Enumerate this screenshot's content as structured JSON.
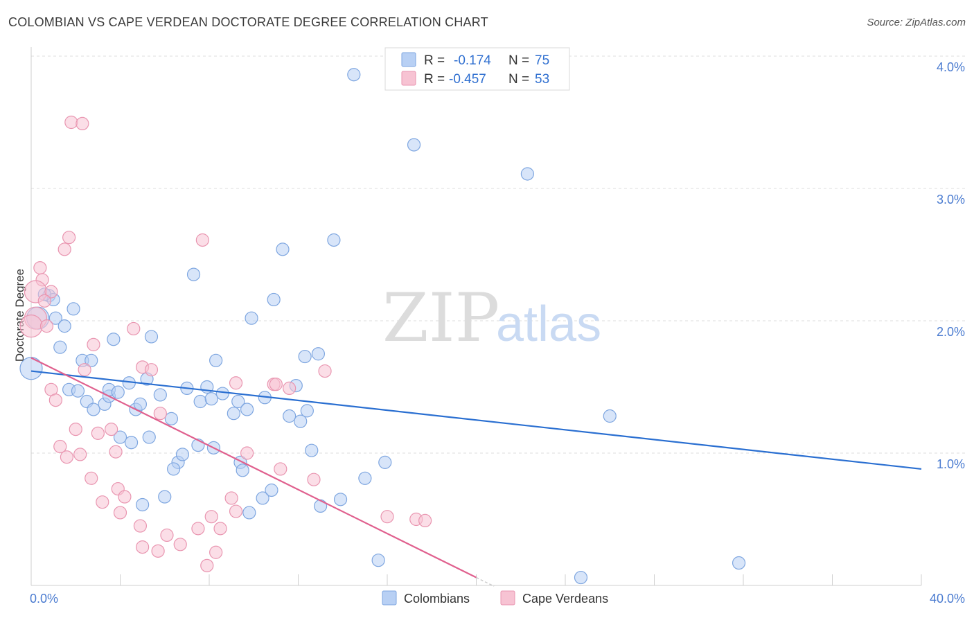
{
  "header": {
    "title": "COLOMBIAN VS CAPE VERDEAN DOCTORATE DEGREE CORRELATION CHART",
    "source": "Source: ZipAtlas.com"
  },
  "colors": {
    "blue_fill": "#b8d0f4",
    "blue_stroke": "#7ea6e0",
    "blue_line": "#2a6fd1",
    "pink_fill": "#f7c3d3",
    "pink_stroke": "#e995b0",
    "pink_line": "#e0608e",
    "grid": "#dddddd",
    "tick_text": "#4a7bd0"
  },
  "watermark": {
    "part1": "ZIP",
    "part2": "atlas"
  },
  "legend": {
    "rows": [
      {
        "r_label": "R =",
        "r_value": "-0.174",
        "n_label": "N =",
        "n_value": "75"
      },
      {
        "r_label": "R =",
        "r_value": "-0.457",
        "n_label": "N =",
        "n_value": "53"
      }
    ]
  },
  "chart_data": {
    "type": "scatter",
    "title": "COLOMBIAN VS CAPE VERDEAN DOCTORATE DEGREE CORRELATION CHART",
    "xlabel": "",
    "ylabel": "Doctorate Degree",
    "xlim": [
      0,
      40
    ],
    "ylim": [
      0,
      4.1
    ],
    "x_tick_labels": [
      {
        "value": 0,
        "label": "0.0%"
      },
      {
        "value": 40,
        "label": "40.0%"
      }
    ],
    "y_tick_labels": [
      {
        "value": 1,
        "label": "1.0%"
      },
      {
        "value": 2,
        "label": "2.0%"
      },
      {
        "value": 3,
        "label": "3.0%"
      },
      {
        "value": 4,
        "label": "4.0%"
      }
    ],
    "grid": true,
    "legend_position": "top-center",
    "series": [
      {
        "name": "Colombians",
        "color": "#b8d0f4",
        "trend": {
          "x": [
            0,
            40
          ],
          "y": [
            1.62,
            0.88
          ]
        },
        "points": [
          {
            "x": 14.5,
            "y": 3.86
          },
          {
            "x": 17.2,
            "y": 3.33
          },
          {
            "x": 22.3,
            "y": 3.11
          },
          {
            "x": 11.3,
            "y": 2.54
          },
          {
            "x": 13.6,
            "y": 2.61
          },
          {
            "x": 7.3,
            "y": 2.35
          },
          {
            "x": 10.9,
            "y": 2.16
          },
          {
            "x": 9.9,
            "y": 2.02
          },
          {
            "x": 0.8,
            "y": 2.19
          },
          {
            "x": 1.0,
            "y": 2.16
          },
          {
            "x": 1.9,
            "y": 2.09
          },
          {
            "x": 1.1,
            "y": 2.02
          },
          {
            "x": 1.5,
            "y": 1.96
          },
          {
            "x": 0.3,
            "y": 2.02
          },
          {
            "x": 1.3,
            "y": 1.8
          },
          {
            "x": 3.7,
            "y": 1.86
          },
          {
            "x": 5.4,
            "y": 1.88
          },
          {
            "x": 0.0,
            "y": 1.64
          },
          {
            "x": 2.3,
            "y": 1.7
          },
          {
            "x": 2.7,
            "y": 1.7
          },
          {
            "x": 8.3,
            "y": 1.7
          },
          {
            "x": 12.3,
            "y": 1.73
          },
          {
            "x": 12.9,
            "y": 1.75
          },
          {
            "x": 1.7,
            "y": 1.48
          },
          {
            "x": 2.1,
            "y": 1.47
          },
          {
            "x": 2.5,
            "y": 1.39
          },
          {
            "x": 3.3,
            "y": 1.37
          },
          {
            "x": 3.5,
            "y": 1.43
          },
          {
            "x": 3.5,
            "y": 1.48
          },
          {
            "x": 3.9,
            "y": 1.46
          },
          {
            "x": 4.4,
            "y": 1.53
          },
          {
            "x": 5.2,
            "y": 1.56
          },
          {
            "x": 2.8,
            "y": 1.33
          },
          {
            "x": 4.7,
            "y": 1.33
          },
          {
            "x": 4.9,
            "y": 1.37
          },
          {
            "x": 5.8,
            "y": 1.44
          },
          {
            "x": 6.3,
            "y": 1.26
          },
          {
            "x": 7.0,
            "y": 1.49
          },
          {
            "x": 7.6,
            "y": 1.39
          },
          {
            "x": 7.9,
            "y": 1.5
          },
          {
            "x": 8.1,
            "y": 1.41
          },
          {
            "x": 8.6,
            "y": 1.45
          },
          {
            "x": 9.1,
            "y": 1.3
          },
          {
            "x": 9.3,
            "y": 1.39
          },
          {
            "x": 9.7,
            "y": 1.33
          },
          {
            "x": 10.5,
            "y": 1.42
          },
          {
            "x": 11.6,
            "y": 1.28
          },
          {
            "x": 11.9,
            "y": 1.51
          },
          {
            "x": 12.1,
            "y": 1.24
          },
          {
            "x": 12.4,
            "y": 1.32
          },
          {
            "x": 4.0,
            "y": 1.12
          },
          {
            "x": 4.5,
            "y": 1.08
          },
          {
            "x": 5.3,
            "y": 1.12
          },
          {
            "x": 6.6,
            "y": 0.93
          },
          {
            "x": 6.8,
            "y": 0.99
          },
          {
            "x": 7.5,
            "y": 1.06
          },
          {
            "x": 8.2,
            "y": 1.04
          },
          {
            "x": 6.4,
            "y": 0.88
          },
          {
            "x": 9.4,
            "y": 0.93
          },
          {
            "x": 9.5,
            "y": 0.87
          },
          {
            "x": 12.6,
            "y": 1.02
          },
          {
            "x": 15.0,
            "y": 0.81
          },
          {
            "x": 15.9,
            "y": 0.93
          },
          {
            "x": 5.0,
            "y": 0.61
          },
          {
            "x": 6.0,
            "y": 0.67
          },
          {
            "x": 9.8,
            "y": 0.55
          },
          {
            "x": 10.4,
            "y": 0.66
          },
          {
            "x": 10.8,
            "y": 0.72
          },
          {
            "x": 13.0,
            "y": 0.6
          },
          {
            "x": 13.9,
            "y": 0.65
          },
          {
            "x": 26.0,
            "y": 1.28
          },
          {
            "x": 15.6,
            "y": 0.19
          },
          {
            "x": 24.7,
            "y": 0.06
          },
          {
            "x": 31.8,
            "y": 0.17
          },
          {
            "x": 0.6,
            "y": 2.2
          }
        ]
      },
      {
        "name": "Cape Verdeans",
        "color": "#f7c3d3",
        "trend": {
          "x": [
            0,
            20
          ],
          "y": [
            1.72,
            0.06
          ]
        },
        "points": [
          {
            "x": 1.8,
            "y": 3.5
          },
          {
            "x": 2.3,
            "y": 3.49
          },
          {
            "x": 1.7,
            "y": 2.63
          },
          {
            "x": 7.7,
            "y": 2.61
          },
          {
            "x": 1.5,
            "y": 2.54
          },
          {
            "x": 0.4,
            "y": 2.4
          },
          {
            "x": 0.5,
            "y": 2.31
          },
          {
            "x": 0.2,
            "y": 2.22
          },
          {
            "x": 0.9,
            "y": 2.22
          },
          {
            "x": 0.6,
            "y": 2.15
          },
          {
            "x": 0.2,
            "y": 2.02
          },
          {
            "x": 0.0,
            "y": 1.96
          },
          {
            "x": 0.7,
            "y": 1.96
          },
          {
            "x": 4.6,
            "y": 1.94
          },
          {
            "x": 2.8,
            "y": 1.82
          },
          {
            "x": 2.4,
            "y": 1.63
          },
          {
            "x": 5.0,
            "y": 1.65
          },
          {
            "x": 5.4,
            "y": 1.63
          },
          {
            "x": 9.2,
            "y": 1.53
          },
          {
            "x": 10.9,
            "y": 1.52
          },
          {
            "x": 11.0,
            "y": 1.52
          },
          {
            "x": 13.2,
            "y": 1.62
          },
          {
            "x": 0.9,
            "y": 1.48
          },
          {
            "x": 1.1,
            "y": 1.4
          },
          {
            "x": 11.6,
            "y": 1.49
          },
          {
            "x": 5.8,
            "y": 1.3
          },
          {
            "x": 2.0,
            "y": 1.18
          },
          {
            "x": 3.0,
            "y": 1.15
          },
          {
            "x": 3.6,
            "y": 1.18
          },
          {
            "x": 1.3,
            "y": 1.05
          },
          {
            "x": 2.2,
            "y": 0.99
          },
          {
            "x": 1.6,
            "y": 0.97
          },
          {
            "x": 3.8,
            "y": 1.01
          },
          {
            "x": 9.7,
            "y": 1.0
          },
          {
            "x": 11.2,
            "y": 0.88
          },
          {
            "x": 2.7,
            "y": 0.81
          },
          {
            "x": 3.9,
            "y": 0.73
          },
          {
            "x": 4.2,
            "y": 0.67
          },
          {
            "x": 3.2,
            "y": 0.63
          },
          {
            "x": 12.7,
            "y": 0.8
          },
          {
            "x": 4.0,
            "y": 0.55
          },
          {
            "x": 9.0,
            "y": 0.66
          },
          {
            "x": 8.1,
            "y": 0.52
          },
          {
            "x": 9.2,
            "y": 0.56
          },
          {
            "x": 4.9,
            "y": 0.45
          },
          {
            "x": 7.5,
            "y": 0.43
          },
          {
            "x": 8.5,
            "y": 0.43
          },
          {
            "x": 16.0,
            "y": 0.52
          },
          {
            "x": 17.3,
            "y": 0.5
          },
          {
            "x": 17.7,
            "y": 0.49
          },
          {
            "x": 6.1,
            "y": 0.38
          },
          {
            "x": 5.0,
            "y": 0.29
          },
          {
            "x": 6.7,
            "y": 0.31
          }
        ]
      }
    ],
    "extra_pink_points": [
      {
        "x": 5.7,
        "y": 0.26
      },
      {
        "x": 7.9,
        "y": 0.15
      },
      {
        "x": 8.3,
        "y": 0.25
      }
    ]
  },
  "bottom_legend": {
    "items": [
      {
        "label": "Colombians"
      },
      {
        "label": "Cape Verdeans"
      }
    ]
  }
}
